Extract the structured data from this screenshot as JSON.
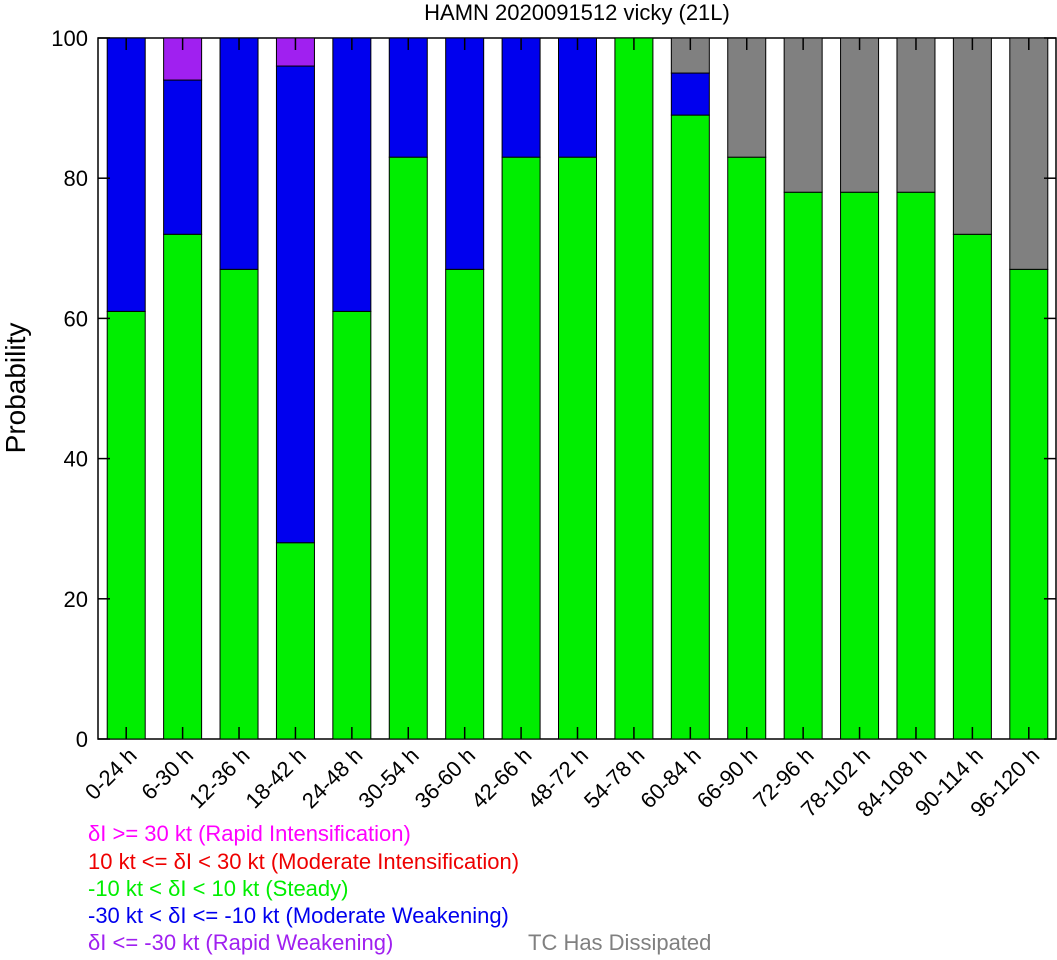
{
  "chart_data": {
    "type": "bar",
    "stacked": true,
    "title": "HAMN 2020091512 vicky (21L)",
    "ylabel": "Probability",
    "ylim": [
      0,
      100
    ],
    "yticks": [
      0,
      20,
      40,
      60,
      80,
      100
    ],
    "categories": [
      "0-24 h",
      "6-30 h",
      "12-36 h",
      "18-42 h",
      "24-48 h",
      "30-54 h",
      "36-60 h",
      "42-66 h",
      "48-72 h",
      "54-78 h",
      "60-84 h",
      "66-90 h",
      "72-96 h",
      "78-102 h",
      "84-108 h",
      "90-114 h",
      "96-120 h"
    ],
    "series": [
      {
        "key": "steady",
        "color": "#00ee00",
        "values": [
          61,
          72,
          67,
          28,
          61,
          83,
          67,
          83,
          83,
          100,
          89,
          83,
          78,
          78,
          78,
          72,
          67
        ]
      },
      {
        "key": "moderate_weakening",
        "color": "#0000ee",
        "values": [
          39,
          22,
          33,
          68,
          39,
          17,
          33,
          17,
          17,
          0,
          6,
          0,
          0,
          0,
          0,
          0,
          0
        ]
      },
      {
        "key": "rapid_weakening",
        "color": "#a020f0",
        "values": [
          0,
          6,
          0,
          4,
          0,
          0,
          0,
          0,
          0,
          0,
          0,
          0,
          0,
          0,
          0,
          0,
          0
        ]
      },
      {
        "key": "dissipated",
        "color": "#808080",
        "values": [
          0,
          0,
          0,
          0,
          0,
          0,
          0,
          0,
          0,
          0,
          5,
          17,
          22,
          22,
          22,
          28,
          33
        ]
      }
    ],
    "grid": false,
    "legend_placement": "bottom-left"
  },
  "legend": [
    {
      "text": "δI >= 30 kt (Rapid Intensification)",
      "color": "#ff00ff"
    },
    {
      "text": "10 kt <= δI < 30 kt (Moderate Intensification)",
      "color": "#ee0000"
    },
    {
      "text": "-10 kt < δI < 10 kt (Steady)",
      "color": "#00ee00"
    },
    {
      "text": "-30 kt < δI <= -10 kt (Moderate Weakening)",
      "color": "#0000ee"
    },
    {
      "text": "δI <= -30 kt (Rapid Weakening)",
      "color": "#a020f0"
    },
    {
      "text": "TC Has Dissipated",
      "color": "#808080"
    }
  ]
}
